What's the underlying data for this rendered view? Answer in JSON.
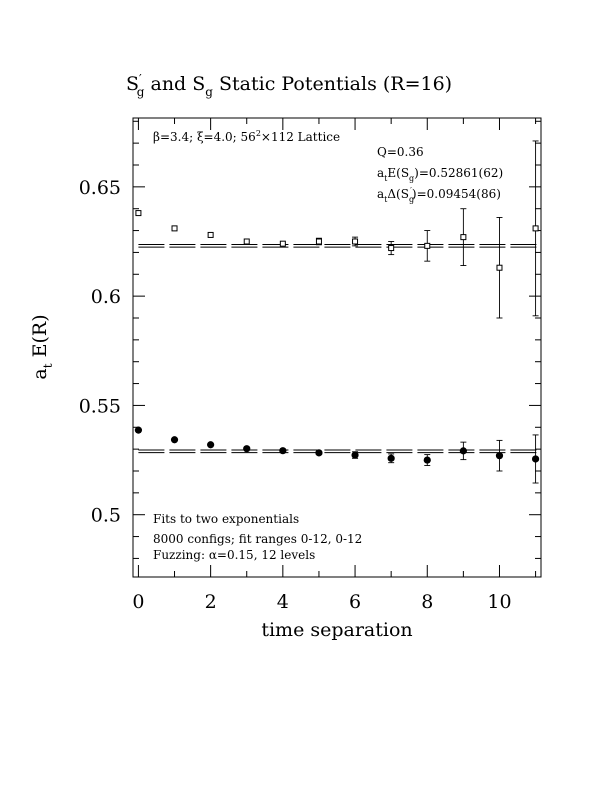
{
  "chart_data": {
    "type": "scatter",
    "title": {
      "main": "S",
      "sup": "′",
      "sub": "g",
      "mid": " and S",
      "sub2": "g",
      "rest": " Static Potentials (R=16)"
    },
    "xlabel": "time separation",
    "ylabel": {
      "main": "a",
      "sub": "t",
      "rest": " E(R)"
    },
    "xlim": [
      -0.15,
      11.15
    ],
    "ylim": [
      0.4715,
      0.6815
    ],
    "xticks": [
      0,
      2,
      4,
      6,
      8,
      10
    ],
    "xtick_labels": [
      "0",
      "2",
      "4",
      "6",
      "8",
      "10"
    ],
    "yticks": [
      0.5,
      0.55,
      0.6,
      0.65
    ],
    "ytick_labels": [
      "0.5",
      "0.55",
      "0.6",
      "0.65"
    ],
    "grid": false,
    "series": [
      {
        "marker": "open-square",
        "x": [
          0,
          1,
          2,
          3,
          4,
          5,
          6,
          7,
          8,
          9,
          10,
          11
        ],
        "y": [
          0.638,
          0.631,
          0.628,
          0.625,
          0.624,
          0.625,
          0.625,
          0.622,
          0.623,
          0.627,
          0.613,
          0.631
        ],
        "err": [
          0.0008,
          0.0008,
          0.001,
          0.001,
          0.0012,
          0.0015,
          0.002,
          0.003,
          0.007,
          0.013,
          0.023,
          0.04
        ],
        "fit": {
          "value": 0.623,
          "band": 0.0006,
          "from": 0,
          "to": 11.15
        }
      },
      {
        "marker": "filled-circle",
        "x": [
          0,
          1,
          2,
          3,
          4,
          5,
          6,
          7,
          8,
          9,
          10,
          11
        ],
        "y": [
          0.5387,
          0.5343,
          0.532,
          0.5302,
          0.5293,
          0.5283,
          0.5273,
          0.5258,
          0.525,
          0.5292,
          0.527,
          0.5255
        ],
        "err": [
          0.0005,
          0.0005,
          0.0006,
          0.0008,
          0.001,
          0.0012,
          0.0015,
          0.002,
          0.0025,
          0.004,
          0.007,
          0.011
        ],
        "fit": {
          "value": 0.529,
          "band": 0.0006,
          "from": 0,
          "to": 11.15
        }
      }
    ],
    "annotations": {
      "lattice": {
        "beta": "β",
        "beta_val": "=3.4;  ",
        "xi": "ξ",
        "xi_val": "=4.0;  56",
        "sup": "2",
        "rest": "×112 Lattice"
      },
      "q": "Q=0.36",
      "energy": {
        "a": "a",
        "t": "t",
        "e": "E(S",
        "g": "g",
        "val": ")=0.52861(62)"
      },
      "delta": {
        "a": "a",
        "t": "t",
        "d": "Δ(S",
        "g": "g",
        "prime": "′",
        "val": ")=0.09454(86)"
      },
      "fits": "Fits to two exponentials",
      "configs": "8000 configs; fit ranges 0-12, 0-12",
      "fuzzing": {
        "pre": "Fuzzing: ",
        "alpha": "α",
        "post": "=0.15, 12 levels"
      }
    }
  }
}
